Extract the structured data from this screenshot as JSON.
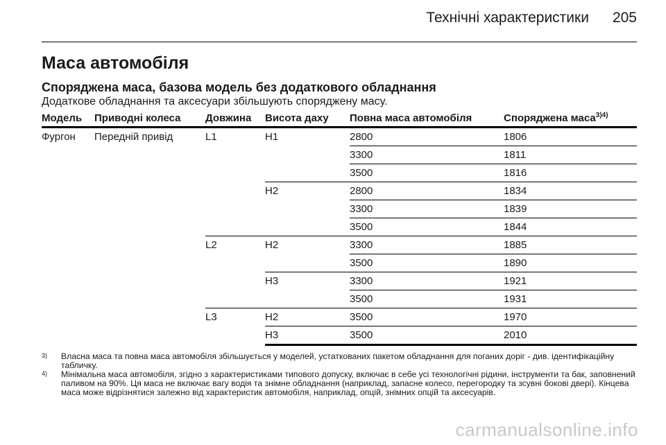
{
  "header": {
    "title": "Технічні характеристики",
    "page_number": "205"
  },
  "section_title": "Маса автомобіля",
  "subsection_title": "Споряджена маса, базова модель без додаткового обладнання",
  "intro_text": "Додаткове обладнання та аксесуари збільшують споряджену масу.",
  "table": {
    "headers": {
      "model": "Модель",
      "drive": "Приводні колеса",
      "length": "Довжина",
      "roof_height": "Висота даху",
      "gross_mass": "Повна маса автомобіля",
      "curb_mass": "Споряджена маса",
      "curb_mass_sup": "3)4)"
    },
    "rows": [
      {
        "model": "Фургон",
        "drive": "Передній привід",
        "length": "L1",
        "height": "H1",
        "gross": "2800",
        "curb": "1806"
      },
      {
        "gross": "3300",
        "curb": "1811"
      },
      {
        "gross": "3500",
        "curb": "1816"
      },
      {
        "height": "H2",
        "gross": "2800",
        "curb": "1834"
      },
      {
        "gross": "3300",
        "curb": "1839"
      },
      {
        "gross": "3500",
        "curb": "1844"
      },
      {
        "length": "L2",
        "height": "H2",
        "gross": "3300",
        "curb": "1885"
      },
      {
        "gross": "3500",
        "curb": "1890"
      },
      {
        "height": "H3",
        "gross": "3300",
        "curb": "1921"
      },
      {
        "gross": "3500",
        "curb": "1931"
      },
      {
        "length": "L3",
        "height": "H2",
        "gross": "3500",
        "curb": "1970"
      },
      {
        "height": "H3",
        "gross": "3500",
        "curb": "2010"
      }
    ]
  },
  "footnotes": [
    {
      "mark": "3)",
      "text": "Власна маса та повна маса автомобіля збільшується у моделей, устаткованих пакетом обладнання для поганих доріг - див. ідентифікаційну табличку."
    },
    {
      "mark": "4)",
      "text": "Мінімальна маса автомобіля, згідно з характеристиками типового допуску, включає в себе усі технологічні рідини, інструменти та бак, заповнений паливом на 90%. Ця маса не включає вагу водія та знімне обладнання (наприклад, запасне колесо, перегородку та зсувні бокові двері). Кінцева маса може відрізнятися залежно від характеристик автомобіля, наприклад, опцій, знімних опцій та аксесуарів."
    }
  ],
  "watermark": "carmanualsonline.info"
}
